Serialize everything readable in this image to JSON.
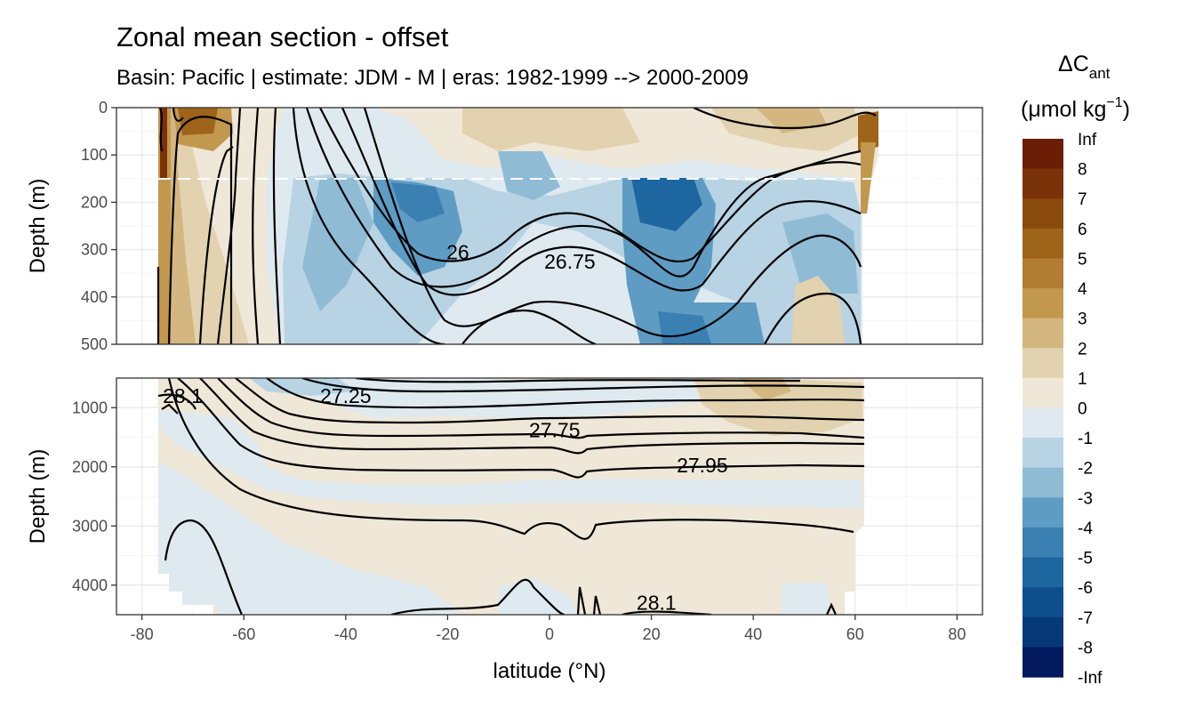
{
  "chart_data": {
    "type": "heatmap",
    "title": "Zonal mean section - offset",
    "subtitle": "Basin: Pacific | estimate: JDM - M | eras: 1982-1999 --> 2000-2009",
    "xlabel": "latitude (°N)",
    "ylabel": "Depth (m)",
    "xlim": [
      -85,
      85
    ],
    "x_ticks": [
      "-80",
      "-60",
      "-40",
      "-20",
      "0",
      "20",
      "40",
      "60",
      "80"
    ],
    "grid": true,
    "panels": [
      {
        "name": "upper",
        "ylim": [
          0,
          500
        ],
        "y_reversed": true,
        "y_ticks": [
          "0",
          "100",
          "200",
          "300",
          "400",
          "500"
        ],
        "reference_line_depth": 150,
        "contour_labels": [
          {
            "text": "26",
            "lat": -18,
            "depth": 305
          },
          {
            "text": "26.75",
            "lat": 4,
            "depth": 325
          }
        ]
      },
      {
        "name": "lower",
        "ylim": [
          500,
          4500
        ],
        "y_reversed": true,
        "y_ticks": [
          "1000",
          "2000",
          "3000",
          "4000"
        ],
        "contour_labels": [
          {
            "text": "28.1",
            "lat": -72,
            "depth": 800
          },
          {
            "text": "27.25",
            "lat": -40,
            "depth": 800
          },
          {
            "text": "27.75",
            "lat": 1,
            "depth": 1380
          },
          {
            "text": "27.95",
            "lat": 30,
            "depth": 1970
          },
          {
            "text": "28.1",
            "lat": 21,
            "depth": 4300
          }
        ]
      }
    ],
    "legend": {
      "title_main": "ΔC",
      "title_sub": "ant",
      "unit_main": "(μmol kg",
      "unit_sup": "−1",
      "unit_end": ")",
      "placement": "right",
      "levels": [
        "Inf",
        "8",
        "7",
        "6",
        "5",
        "4",
        "3",
        "2",
        "1",
        "0",
        "-1",
        "-2",
        "-3",
        "-4",
        "-5",
        "-6",
        "-7",
        "-8",
        "-Inf"
      ],
      "colors": [
        "#6b1d06",
        "#7a3208",
        "#8a4a0c",
        "#9e6419",
        "#b07d32",
        "#c2984f",
        "#d3b680",
        "#e3d2af",
        "#efe7d8",
        "#dfeaf0",
        "#b8d3e3",
        "#8fbbd5",
        "#5e9cc3",
        "#3a80b3",
        "#1e66a0",
        "#0d4e8d",
        "#073878",
        "#02195e"
      ]
    }
  }
}
